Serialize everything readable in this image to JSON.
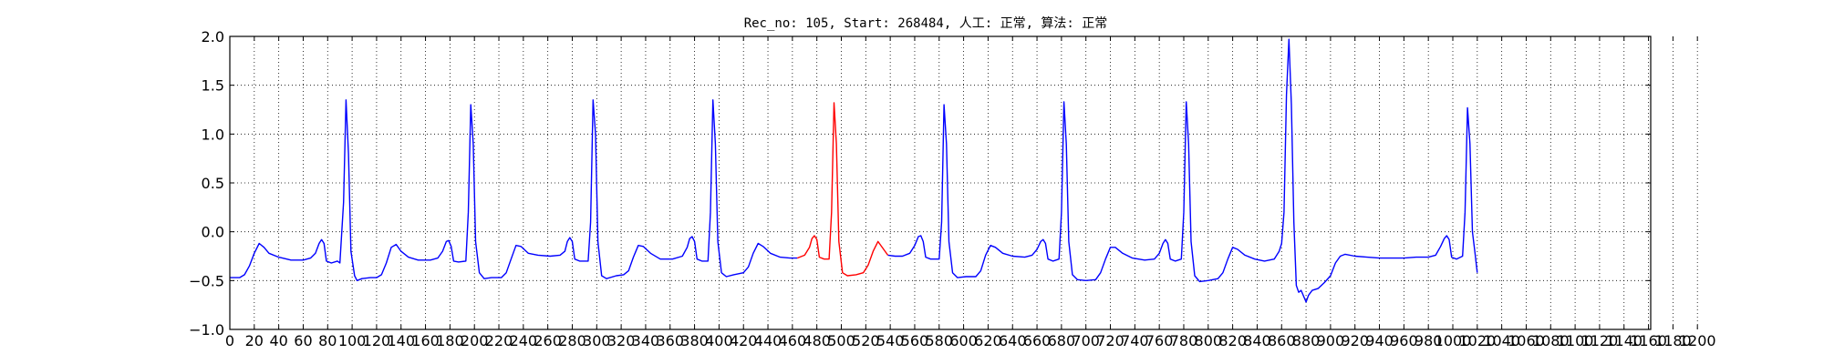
{
  "chart_data": {
    "type": "line",
    "title": "Rec_no: 105, Start: 268484, 人工: 正常, 算法: 正常",
    "xlabel": "",
    "ylabel": "",
    "xlim": [
      0,
      1200
    ],
    "ylim": [
      -1.0,
      2.0
    ],
    "grid": true,
    "grid_style": "dotted",
    "y_ticks": [
      "−1.0",
      "−0.5",
      "0.0",
      "0.5",
      "1.0",
      "1.5",
      "2.0"
    ],
    "x_tick_step": 20,
    "x_tick_labels": [
      "0",
      "20",
      "40",
      "60",
      "80",
      "100",
      "120",
      "140",
      "160",
      "180",
      "200",
      "220",
      "240",
      "260",
      "280",
      "300",
      "320",
      "340",
      "360",
      "380",
      "400",
      "420",
      "440",
      "460",
      "480",
      "500",
      "520",
      "540",
      "560",
      "580",
      "600",
      "620",
      "640",
      "660",
      "680",
      "700",
      "720",
      "740",
      "760",
      "780",
      "800",
      "820",
      "840",
      "860",
      "880",
      "900",
      "920",
      "940",
      "960",
      "980",
      "1000",
      "1020",
      "1040",
      "1060",
      "1080",
      "1100",
      "1120",
      "1140",
      "1160",
      "1180",
      "1200"
    ],
    "series": [
      {
        "color": "#0000ff",
        "segments": [
          [
            [
              0,
              -0.47
            ],
            [
              8,
              -0.47
            ],
            [
              12,
              -0.44
            ],
            [
              16,
              -0.35
            ],
            [
              20,
              -0.22
            ],
            [
              24,
              -0.12
            ],
            [
              28,
              -0.16
            ],
            [
              32,
              -0.22
            ],
            [
              40,
              -0.26
            ],
            [
              50,
              -0.29
            ],
            [
              60,
              -0.29
            ],
            [
              66,
              -0.27
            ],
            [
              70,
              -0.22
            ],
            [
              73,
              -0.12
            ],
            [
              75,
              -0.08
            ],
            [
              77,
              -0.12
            ],
            [
              79,
              -0.3
            ],
            [
              83,
              -0.32
            ],
            [
              88,
              -0.3
            ],
            [
              90,
              -0.32
            ],
            [
              93,
              0.3
            ],
            [
              95,
              1.35
            ],
            [
              97,
              0.8
            ],
            [
              99,
              -0.2
            ],
            [
              102,
              -0.45
            ],
            [
              104,
              -0.5
            ],
            [
              108,
              -0.48
            ],
            [
              115,
              -0.47
            ],
            [
              120,
              -0.47
            ],
            [
              124,
              -0.44
            ],
            [
              128,
              -0.32
            ],
            [
              132,
              -0.16
            ],
            [
              136,
              -0.13
            ],
            [
              140,
              -0.2
            ],
            [
              146,
              -0.26
            ],
            [
              154,
              -0.29
            ],
            [
              164,
              -0.29
            ],
            [
              170,
              -0.27
            ],
            [
              174,
              -0.2
            ],
            [
              177,
              -0.1
            ],
            [
              179,
              -0.09
            ],
            [
              181,
              -0.15
            ],
            [
              183,
              -0.3
            ],
            [
              187,
              -0.31
            ],
            [
              193,
              -0.3
            ],
            [
              195,
              0.2
            ],
            [
              197,
              1.3
            ],
            [
              199,
              0.9
            ],
            [
              201,
              -0.1
            ],
            [
              204,
              -0.42
            ],
            [
              208,
              -0.48
            ],
            [
              214,
              -0.47
            ],
            [
              222,
              -0.47
            ],
            [
              226,
              -0.42
            ],
            [
              230,
              -0.28
            ],
            [
              234,
              -0.14
            ],
            [
              238,
              -0.15
            ],
            [
              244,
              -0.22
            ],
            [
              252,
              -0.24
            ],
            [
              262,
              -0.25
            ],
            [
              270,
              -0.24
            ],
            [
              274,
              -0.2
            ],
            [
              276,
              -0.1
            ],
            [
              278,
              -0.06
            ],
            [
              280,
              -0.1
            ],
            [
              282,
              -0.28
            ],
            [
              286,
              -0.3
            ],
            [
              293,
              -0.3
            ],
            [
              295,
              0.1
            ],
            [
              297,
              1.35
            ],
            [
              299,
              1.0
            ],
            [
              301,
              -0.1
            ],
            [
              304,
              -0.45
            ],
            [
              308,
              -0.48
            ],
            [
              316,
              -0.45
            ],
            [
              322,
              -0.44
            ],
            [
              326,
              -0.4
            ],
            [
              330,
              -0.26
            ],
            [
              334,
              -0.14
            ],
            [
              338,
              -0.15
            ],
            [
              344,
              -0.22
            ],
            [
              352,
              -0.28
            ],
            [
              362,
              -0.28
            ],
            [
              370,
              -0.25
            ],
            [
              374,
              -0.16
            ],
            [
              376,
              -0.07
            ],
            [
              378,
              -0.05
            ],
            [
              380,
              -0.1
            ],
            [
              382,
              -0.28
            ],
            [
              386,
              -0.3
            ],
            [
              391,
              -0.3
            ],
            [
              393,
              0.2
            ],
            [
              395,
              1.35
            ],
            [
              397,
              0.9
            ],
            [
              399,
              -0.1
            ],
            [
              402,
              -0.42
            ],
            [
              406,
              -0.46
            ],
            [
              412,
              -0.44
            ],
            [
              420,
              -0.42
            ],
            [
              424,
              -0.36
            ],
            [
              428,
              -0.22
            ],
            [
              432,
              -0.12
            ],
            [
              436,
              -0.15
            ],
            [
              442,
              -0.22
            ],
            [
              450,
              -0.26
            ],
            [
              458,
              -0.27
            ],
            [
              464,
              -0.27
            ]
          ],
          [
            [
              538,
              -0.24
            ],
            [
              544,
              -0.25
            ],
            [
              550,
              -0.25
            ],
            [
              556,
              -0.22
            ],
            [
              560,
              -0.14
            ],
            [
              563,
              -0.05
            ],
            [
              565,
              -0.04
            ],
            [
              567,
              -0.1
            ],
            [
              569,
              -0.26
            ],
            [
              573,
              -0.28
            ],
            [
              580,
              -0.28
            ],
            [
              582,
              0.1
            ],
            [
              584,
              1.3
            ],
            [
              586,
              0.9
            ],
            [
              588,
              -0.1
            ],
            [
              591,
              -0.42
            ],
            [
              595,
              -0.47
            ],
            [
              602,
              -0.46
            ],
            [
              610,
              -0.46
            ],
            [
              614,
              -0.4
            ],
            [
              618,
              -0.24
            ],
            [
              622,
              -0.14
            ],
            [
              626,
              -0.16
            ],
            [
              632,
              -0.22
            ],
            [
              640,
              -0.25
            ],
            [
              650,
              -0.26
            ],
            [
              656,
              -0.24
            ],
            [
              660,
              -0.18
            ],
            [
              663,
              -0.1
            ],
            [
              665,
              -0.08
            ],
            [
              667,
              -0.12
            ],
            [
              669,
              -0.28
            ],
            [
              673,
              -0.3
            ],
            [
              678,
              -0.28
            ],
            [
              680,
              0.2
            ],
            [
              682,
              1.33
            ],
            [
              684,
              0.9
            ],
            [
              686,
              -0.1
            ],
            [
              689,
              -0.44
            ],
            [
              693,
              -0.49
            ],
            [
              700,
              -0.5
            ],
            [
              708,
              -0.49
            ],
            [
              712,
              -0.42
            ],
            [
              716,
              -0.28
            ],
            [
              720,
              -0.16
            ],
            [
              724,
              -0.16
            ],
            [
              730,
              -0.22
            ],
            [
              738,
              -0.27
            ],
            [
              748,
              -0.29
            ],
            [
              756,
              -0.28
            ],
            [
              760,
              -0.22
            ],
            [
              763,
              -0.12
            ],
            [
              765,
              -0.08
            ],
            [
              767,
              -0.12
            ],
            [
              769,
              -0.28
            ],
            [
              773,
              -0.3
            ],
            [
              778,
              -0.28
            ],
            [
              780,
              0.2
            ],
            [
              782,
              1.33
            ],
            [
              784,
              0.9
            ],
            [
              786,
              -0.1
            ],
            [
              789,
              -0.45
            ],
            [
              793,
              -0.51
            ],
            [
              800,
              -0.5
            ],
            [
              808,
              -0.48
            ],
            [
              812,
              -0.42
            ],
            [
              816,
              -0.28
            ],
            [
              820,
              -0.16
            ],
            [
              824,
              -0.18
            ],
            [
              830,
              -0.24
            ],
            [
              838,
              -0.28
            ],
            [
              846,
              -0.3
            ],
            [
              854,
              -0.28
            ],
            [
              858,
              -0.2
            ],
            [
              860,
              -0.12
            ],
            [
              862,
              0.2
            ],
            [
              864,
              1.4
            ],
            [
              866,
              1.97
            ],
            [
              868,
              1.3
            ],
            [
              870,
              0.1
            ],
            [
              872,
              -0.55
            ],
            [
              874,
              -0.62
            ],
            [
              876,
              -0.6
            ],
            [
              878,
              -0.66
            ],
            [
              880,
              -0.72
            ],
            [
              882,
              -0.65
            ],
            [
              885,
              -0.6
            ],
            [
              890,
              -0.58
            ],
            [
              895,
              -0.52
            ],
            [
              900,
              -0.45
            ],
            [
              904,
              -0.32
            ],
            [
              908,
              -0.25
            ],
            [
              912,
              -0.23
            ],
            [
              920,
              -0.25
            ],
            [
              930,
              -0.26
            ],
            [
              940,
              -0.27
            ],
            [
              950,
              -0.27
            ],
            [
              960,
              -0.27
            ],
            [
              970,
              -0.26
            ],
            [
              980,
              -0.26
            ],
            [
              986,
              -0.24
            ],
            [
              990,
              -0.15
            ],
            [
              993,
              -0.07
            ],
            [
              995,
              -0.04
            ],
            [
              997,
              -0.08
            ],
            [
              999,
              -0.26
            ],
            [
              1003,
              -0.28
            ],
            [
              1008,
              -0.25
            ],
            [
              1010,
              0.2
            ],
            [
              1012,
              1.27
            ],
            [
              1014,
              0.9
            ],
            [
              1016,
              0.0
            ],
            [
              1018,
              -0.2
            ],
            [
              1020,
              -0.42
            ]
          ]
        ]
      },
      {
        "color": "#ff0000",
        "segments": [
          [
            [
              464,
              -0.27
            ],
            [
              470,
              -0.24
            ],
            [
              474,
              -0.16
            ],
            [
              476,
              -0.07
            ],
            [
              478,
              -0.04
            ],
            [
              480,
              -0.08
            ],
            [
              482,
              -0.26
            ],
            [
              486,
              -0.28
            ],
            [
              490,
              -0.28
            ],
            [
              492,
              0.2
            ],
            [
              494,
              1.32
            ],
            [
              496,
              0.9
            ],
            [
              498,
              -0.1
            ],
            [
              501,
              -0.42
            ],
            [
              505,
              -0.45
            ],
            [
              512,
              -0.44
            ],
            [
              518,
              -0.42
            ],
            [
              522,
              -0.34
            ],
            [
              526,
              -0.2
            ],
            [
              530,
              -0.1
            ],
            [
              534,
              -0.17
            ],
            [
              538,
              -0.24
            ]
          ]
        ]
      }
    ]
  }
}
